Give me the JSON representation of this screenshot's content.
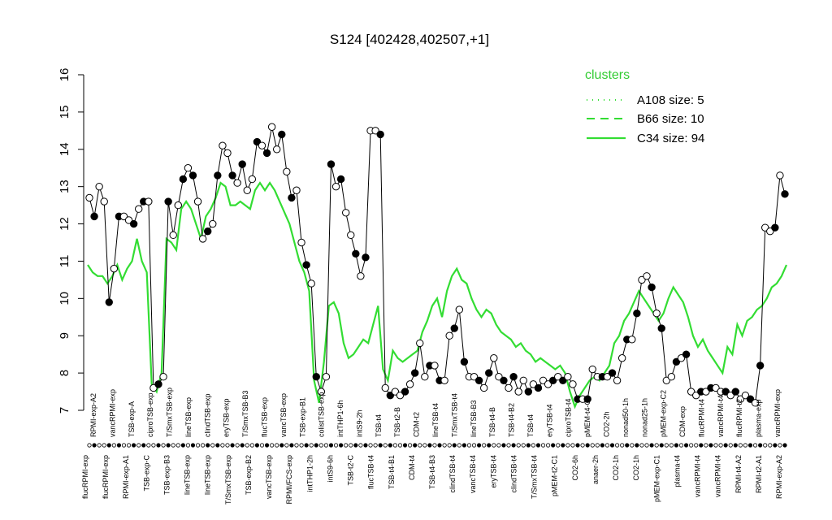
{
  "chart_data": {
    "type": "line",
    "title": "S124 [402428,402507,+1]",
    "ylim": [
      7,
      16
    ],
    "yticks": [
      7,
      8,
      9,
      10,
      11,
      12,
      13,
      14,
      15,
      16
    ],
    "legend": {
      "title": "clusters",
      "placement": "top-right",
      "entries": [
        {
          "label": "A108 size: 5",
          "style": "dotted"
        },
        {
          "label": "B66 size: 10",
          "style": "dashed"
        },
        {
          "label": "C34 size: 94",
          "style": "solid"
        }
      ]
    },
    "colors": {
      "cluster_lines": "#33dd33",
      "sample_line": "#000000"
    },
    "top_labels": [
      "RPMI-exp-A2",
      "vancRPMI-exp",
      "TSB-exp-A",
      "ciproTSB-exp",
      "T/SmxTSB-exp",
      "lineTSB-exp",
      "clindTSB-exp",
      "eryTSB-exp",
      "T/SmxTSB-B3",
      "flucTSB-exp",
      "vancTSB-exp",
      "TSB-exp-B1",
      "colistTSB-exp",
      "intTHP1-6h",
      "intS9-2h",
      "TSB-t4",
      "TSB-t2-B",
      "CDM-t2",
      "lineTSB-t4",
      "T/SmxTSB-t4",
      "lineTSB-B3",
      "TSB-t4-B",
      "TSB-t4-B2",
      "TSB-t4",
      "eryTSB-t4",
      "ciproTSB-t4",
      "pMEM-t4-C",
      "CO2-2h",
      "nonad50-1h",
      "nonad25-1h",
      "pMEM-exp-C2",
      "CDM-exp",
      "flucRPMI-t4",
      "vancRPMI-t4",
      "flucRPMI-t2",
      "plasma-exp",
      "vancRPMI-exp"
    ],
    "bottom_labels": [
      "flucRPMI-exp",
      "flucRPMI-exp",
      "RPMI-exp-A1",
      "TSB-exp-C",
      "TSB-exp-B3",
      "lineTSB-exp",
      "lineTSB-exp",
      "T/SmxTSB-exp",
      "TSB-exp-B2",
      "vancTSB-exp",
      "RPMI/FCS-exp",
      "intTHP1-2h",
      "intS9-6h",
      "TSB-t2-C",
      "flucTSB-t4",
      "TSB-t4-B1",
      "CDM-t4",
      "TSB-t4-B3",
      "clindTSB-t4",
      "vancTSB-t4",
      "eryTSB-t4",
      "clindTSB-t4",
      "T/SmxTSB-t4",
      "pMEM-t2-C1",
      "CO2-6h",
      "anaer-2h",
      "CO2-1h",
      "CO2-1h",
      "pMEM-exp-C1",
      "plasma-t4",
      "vancRPMI-t4",
      "vancRPMI-t4",
      "RPMI-t4-A2",
      "RPMI-t2-A1",
      "RPMI-exp-A2"
    ],
    "sample_values": [
      12.7,
      12.2,
      13.0,
      12.6,
      9.9,
      10.8,
      12.2,
      12.2,
      12.1,
      12.0,
      12.4,
      12.6,
      12.6,
      7.6,
      7.7,
      7.9,
      12.6,
      11.7,
      12.5,
      13.2,
      13.5,
      13.3,
      12.6,
      11.6,
      11.8,
      12.0,
      13.3,
      14.1,
      13.9,
      13.3,
      13.1,
      13.6,
      12.9,
      13.2,
      14.2,
      14.1,
      13.9,
      14.6,
      14.0,
      14.4,
      13.4,
      12.7,
      12.9,
      11.5,
      10.9,
      10.4,
      7.9,
      7.5,
      7.9,
      13.6,
      13.0,
      13.2,
      12.3,
      11.7,
      11.2,
      10.6,
      11.1,
      14.5,
      14.5,
      14.4,
      7.6,
      7.4,
      7.5,
      7.4,
      7.5,
      7.7,
      8.0,
      8.8,
      7.9,
      8.2,
      8.2,
      7.8,
      7.8,
      9.0,
      9.2,
      9.7,
      8.3,
      7.9,
      7.9,
      7.8,
      7.6,
      8.0,
      8.4,
      7.9,
      7.8,
      7.6,
      7.9,
      7.5,
      7.8,
      7.5,
      7.7,
      7.6,
      7.8,
      7.7,
      7.8,
      7.9,
      7.8,
      7.9,
      7.7,
      7.3,
      7.3,
      7.3,
      8.1,
      7.9,
      7.9,
      7.9,
      8.0,
      7.8,
      8.4,
      8.9,
      8.9,
      9.6,
      10.5,
      10.6,
      10.3,
      9.6,
      9.2,
      7.8,
      7.9,
      8.3,
      8.4,
      8.5,
      7.5,
      7.4,
      7.5,
      7.5,
      7.6,
      7.6,
      7.5,
      7.5,
      7.4,
      7.5,
      7.3,
      7.4,
      7.3,
      7.2,
      8.2,
      11.9,
      11.8,
      11.9,
      13.3,
      12.8
    ],
    "C34_values": [
      10.9,
      10.7,
      10.6,
      10.6,
      10.4,
      10.6,
      10.9,
      10.5,
      10.8,
      11.0,
      11.6,
      11.0,
      10.7,
      7.7,
      7.5,
      8.0,
      11.6,
      11.5,
      11.3,
      12.4,
      12.6,
      12.4,
      12.0,
      11.6,
      12.2,
      12.4,
      12.7,
      13.1,
      13.0,
      12.5,
      12.5,
      12.6,
      12.5,
      12.4,
      12.9,
      13.1,
      12.9,
      13.1,
      12.9,
      12.6,
      12.3,
      12.0,
      11.5,
      11.0,
      10.7,
      10.2,
      7.8,
      7.2,
      8.3,
      9.8,
      9.9,
      9.6,
      8.8,
      8.4,
      8.5,
      8.7,
      8.9,
      8.8,
      9.3,
      9.8,
      8.1,
      7.8,
      8.6,
      8.4,
      8.3,
      8.4,
      8.5,
      8.6,
      9.1,
      9.4,
      9.8,
      10.0,
      9.5,
      10.2,
      10.6,
      10.8,
      10.5,
      10.4,
      10.0,
      9.7,
      9.5,
      9.7,
      9.6,
      9.3,
      9.1,
      9.0,
      8.9,
      8.7,
      8.8,
      8.6,
      8.5,
      8.3,
      8.4,
      8.3,
      8.2,
      8.1,
      8.2,
      8.0,
      7.5,
      7.1,
      7.4,
      7.6,
      7.8,
      7.9,
      7.8,
      8.0,
      8.2,
      8.8,
      9.0,
      9.4,
      9.6,
      9.9,
      10.2,
      10.0,
      9.8,
      9.6,
      9.4,
      9.6,
      10.0,
      10.3,
      10.1,
      9.9,
      9.5,
      9.0,
      8.7,
      8.9,
      8.6,
      8.4,
      8.2,
      8.0,
      8.7,
      8.5,
      9.3,
      9.0,
      9.4,
      9.5,
      9.7,
      9.8,
      10.0,
      10.3,
      10.4,
      10.6,
      10.9
    ]
  }
}
